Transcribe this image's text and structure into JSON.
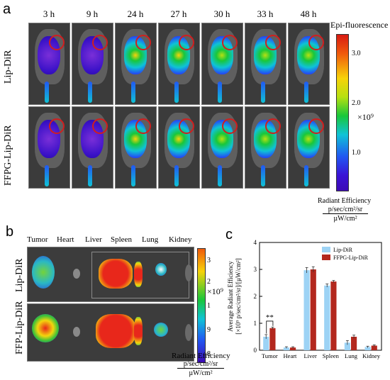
{
  "panel_a": {
    "letter": "a",
    "timepoints": [
      "3 h",
      "9 h",
      "24 h",
      "27 h",
      "30 h",
      "33 h",
      "48 h"
    ],
    "rows": [
      "Lip-DiR",
      "FFPG-Lip-DiR"
    ],
    "scale_title": "Epi-fluorescence",
    "scale_ticks": [
      "3.0",
      "2.0",
      "1.0"
    ],
    "scale_multiplier": "×10⁹",
    "unit_label": "Radiant Efficiency",
    "unit_num": "p/sec/cm²/sr",
    "unit_den": "µW/cm²"
  },
  "panel_b": {
    "letter": "b",
    "organs": [
      "Tumor",
      "Heart",
      "Liver",
      "Spleen",
      "Lung",
      "Kidney"
    ],
    "rows": [
      "Lip-DiR",
      "FFP-Lip-DiR"
    ],
    "scale_ticks": [
      "3",
      "2",
      "1",
      "9",
      "8"
    ],
    "scale_multiplier": "×10⁹",
    "unit_label": "Radiant Efficiency",
    "unit_num": "p/sec/cm²/sr",
    "unit_den": "µW/cm²"
  },
  "panel_c": {
    "letter": "c",
    "significance": "**",
    "ylabel_line1": "Average Radiant Efficiency",
    "ylabel_line2": "[×10⁹ p/sec/cm²/sr]/[µW/cm²]"
  },
  "chart_data": {
    "type": "bar",
    "categories": [
      "Tumor",
      "Heart",
      "Liver",
      "Spleen",
      "Lung",
      "Kidney"
    ],
    "series": [
      {
        "name": "Lip-DiR",
        "values": [
          0.5,
          0.1,
          2.97,
          2.4,
          0.28,
          0.12
        ],
        "errors": [
          0.08,
          0.03,
          0.1,
          0.06,
          0.08,
          0.03
        ],
        "color": "#9dd3f5"
      },
      {
        "name": "FFPG-Lip-DiR",
        "values": [
          0.82,
          0.1,
          3.0,
          2.55,
          0.5,
          0.17
        ],
        "errors": [
          0.04,
          0.03,
          0.1,
          0.04,
          0.06,
          0.03
        ],
        "color": "#b3281e"
      }
    ],
    "ylim": [
      0,
      4
    ],
    "yticks": [
      0,
      1,
      2,
      3,
      4
    ],
    "legend": "top-right",
    "ylabel": "Average Radiant Efficiency [×10⁹ p/sec/cm²/sr]/[µW/cm²]"
  }
}
